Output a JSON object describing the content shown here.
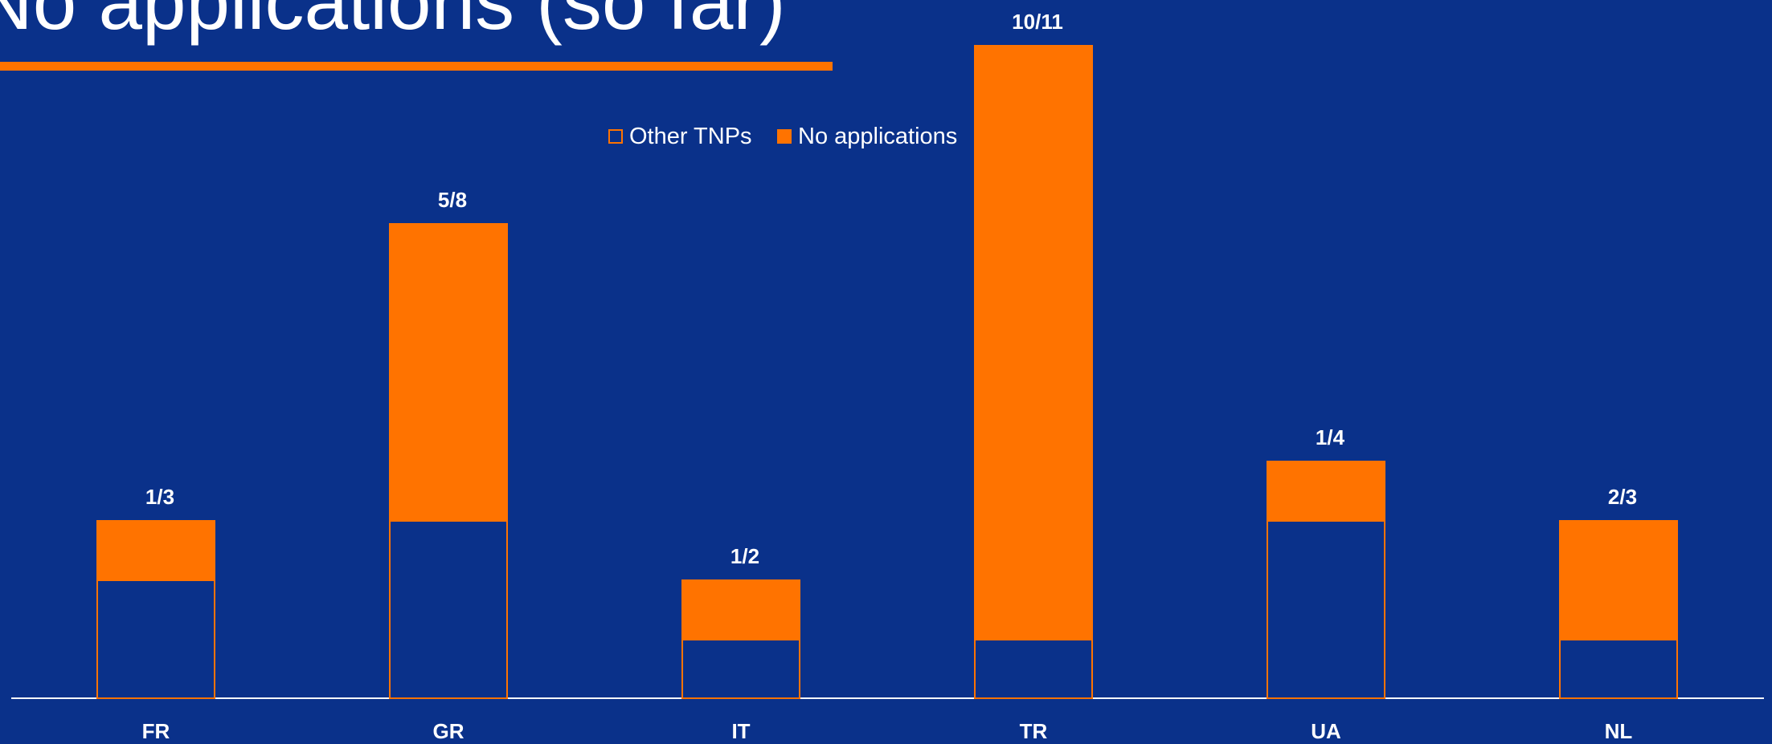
{
  "chart_data": {
    "type": "stacked_bar",
    "title": "No applications (so far)",
    "categories": [
      "FR",
      "GR",
      "IT",
      "TR",
      "UA",
      "NL"
    ],
    "series": [
      {
        "name": "Other TNPs",
        "color": "#ff7300",
        "fill": "none",
        "values": [
          2,
          3,
          1,
          1,
          3,
          1
        ]
      },
      {
        "name": "No applications",
        "color": "#ff7300",
        "fill": "solid",
        "values": [
          1,
          5,
          1,
          10,
          1,
          2
        ]
      }
    ],
    "bar_labels": [
      "1/3",
      "5/8",
      "1/2",
      "10/11",
      "1/4",
      "2/3"
    ],
    "ylim": [
      0,
      11
    ],
    "legend": "top"
  }
}
